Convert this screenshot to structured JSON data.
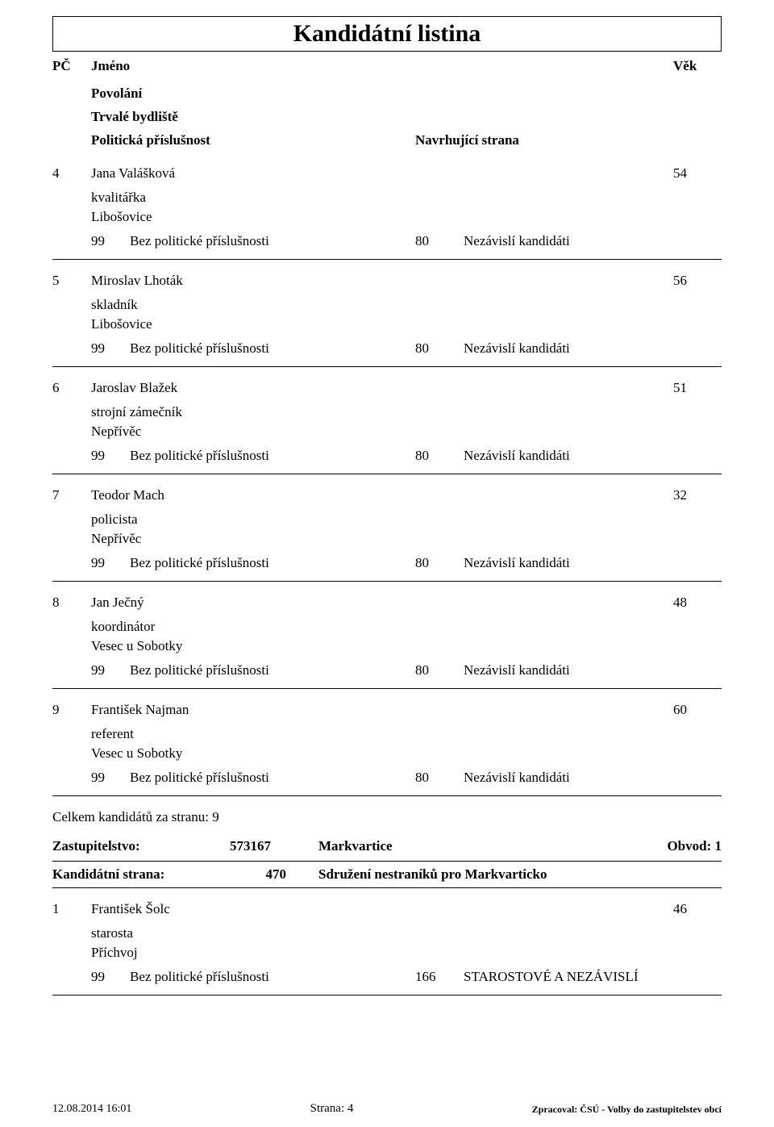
{
  "title": "Kandidátní listina",
  "headers": {
    "pc": "PČ",
    "jmeno": "Jméno",
    "vek": "Věk",
    "povolani": "Povolání",
    "bydliste": "Trvalé bydliště",
    "prislusnost": "Politická příslušnost",
    "navrhujici": "Navrhující strana"
  },
  "candidates": [
    {
      "pc": "4",
      "name": "Jana Valášková",
      "age": "54",
      "occupation": "kvalitářka",
      "residence": "Libošovice",
      "pol_code": "99",
      "pol_text": "Bez politické příslušnosti",
      "nav_code": "80",
      "nav_text": "Nezávislí kandidáti"
    },
    {
      "pc": "5",
      "name": "Miroslav Lhoták",
      "age": "56",
      "occupation": "skladník",
      "residence": "Libošovice",
      "pol_code": "99",
      "pol_text": "Bez politické příslušnosti",
      "nav_code": "80",
      "nav_text": "Nezávislí kandidáti"
    },
    {
      "pc": "6",
      "name": "Jaroslav Blažek",
      "age": "51",
      "occupation": "strojní zámečník",
      "residence": "Nepřívěc",
      "pol_code": "99",
      "pol_text": "Bez politické příslušnosti",
      "nav_code": "80",
      "nav_text": "Nezávislí kandidáti"
    },
    {
      "pc": "7",
      "name": "Teodor Mach",
      "age": "32",
      "occupation": "policista",
      "residence": "Nepřívěc",
      "pol_code": "99",
      "pol_text": "Bez politické příslušnosti",
      "nav_code": "80",
      "nav_text": "Nezávislí kandidáti"
    },
    {
      "pc": "8",
      "name": "Jan Ječný",
      "age": "48",
      "occupation": "koordinátor",
      "residence": "Vesec u Sobotky",
      "pol_code": "99",
      "pol_text": "Bez politické příslušnosti",
      "nav_code": "80",
      "nav_text": "Nezávislí kandidáti"
    },
    {
      "pc": "9",
      "name": "František Najman",
      "age": "60",
      "occupation": "referent",
      "residence": "Vesec u Sobotky",
      "pol_code": "99",
      "pol_text": "Bez politické příslušnosti",
      "nav_code": "80",
      "nav_text": "Nezávislí kandidáti"
    }
  ],
  "total_label": "Celkem kandidátů za stranu: 9",
  "party": {
    "zast_label": "Zastupitelstvo:",
    "zast_code": "573167",
    "zast_name": "Markvartice",
    "obvod": "Obvod: 1",
    "kand_label": "Kandidátní strana:",
    "kand_code": "470",
    "kand_name": "Sdružení nestraníků pro Markvarticko"
  },
  "candidates2": [
    {
      "pc": "1",
      "name": "František Šolc",
      "age": "46",
      "occupation": "starosta",
      "residence": "Příchvoj",
      "pol_code": "99",
      "pol_text": "Bez politické příslušnosti",
      "nav_code": "166",
      "nav_text": "STAROSTOVÉ A NEZÁVISLÍ"
    }
  ],
  "footer": {
    "left": "12.08.2014 16:01",
    "center": "Strana: 4",
    "right": "Zpracoval: ČSÚ - Volby do zastupitelstev obcí"
  }
}
